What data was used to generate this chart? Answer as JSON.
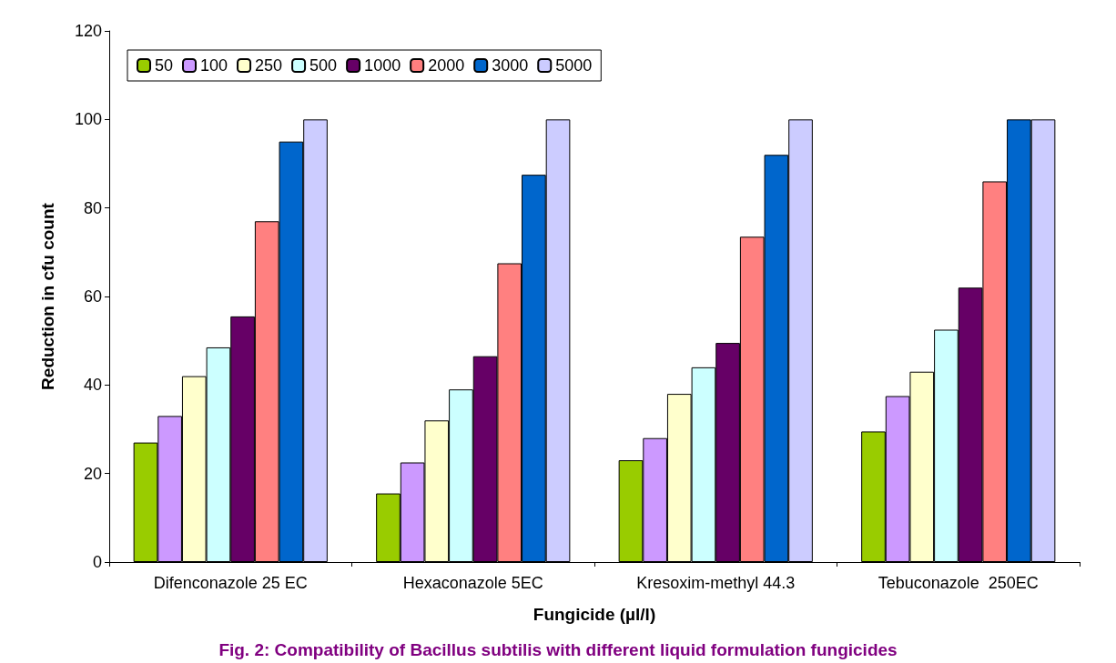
{
  "chart_data": {
    "type": "bar",
    "title": "Fig. 2: Compatibility of Bacillus subtilis with different liquid formulation fungicides",
    "xlabel": "Fungicide (µl/l)",
    "ylabel": "Reduction in cfu count",
    "categories": [
      "Difenconazole 25 EC",
      "Hexaconazole 5EC",
      "Kresoxim-methyl 44.3",
      "Tebuconazole  250EC"
    ],
    "series": [
      {
        "name": "50",
        "color": "#99cc00",
        "values": [
          27,
          15.5,
          23,
          29.5
        ]
      },
      {
        "name": "100",
        "color": "#cc99ff",
        "values": [
          33,
          22.5,
          28,
          37.5
        ]
      },
      {
        "name": "250",
        "color": "#ffffcc",
        "values": [
          42,
          32,
          38,
          43
        ]
      },
      {
        "name": "500",
        "color": "#ccffff",
        "values": [
          48.5,
          39,
          44,
          52.5
        ]
      },
      {
        "name": "1000",
        "color": "#660066",
        "values": [
          55.5,
          46.5,
          49.5,
          62
        ]
      },
      {
        "name": "2000",
        "color": "#ff8080",
        "values": [
          77,
          67.5,
          73.5,
          86
        ]
      },
      {
        "name": "3000",
        "color": "#0066cc",
        "values": [
          95,
          87.5,
          92,
          100
        ]
      },
      {
        "name": "5000",
        "color": "#ccccff",
        "values": [
          100,
          100,
          100,
          100
        ]
      }
    ],
    "ylim": [
      0,
      120
    ],
    "yticks": [
      0,
      20,
      40,
      60,
      80,
      100,
      120
    ],
    "grid": false,
    "legend": "top left"
  }
}
